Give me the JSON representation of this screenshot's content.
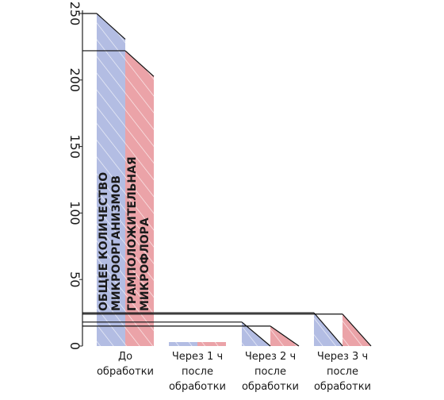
{
  "chart_data": {
    "type": "bar",
    "title": "",
    "xlabel": "",
    "ylabel": "",
    "ylim": [
      0,
      250
    ],
    "yticks": [
      0,
      50,
      100,
      150,
      200,
      250
    ],
    "grid": false,
    "categories": [
      [
        "До",
        "обработки"
      ],
      [
        "Через 1 ч",
        "после",
        "обработки"
      ],
      [
        "Через 2 ч",
        "после",
        "обработки"
      ],
      [
        "Через 3 ч",
        "после",
        "обработки"
      ]
    ],
    "series": [
      {
        "name": [
          "ОБЩЕЕ КОЛИЧЕСТВО",
          "МИКРООРГАНИЗМОВ"
        ],
        "color": "#b3bde3",
        "values": [
          250,
          3,
          18,
          25
        ]
      },
      {
        "name": [
          "ГРАМПОЛОЖИТЕЛЬНАЯ",
          "МИКРОФЛОРА"
        ],
        "color": "#eba3a8",
        "values": [
          222,
          3,
          15,
          24
        ]
      }
    ]
  }
}
